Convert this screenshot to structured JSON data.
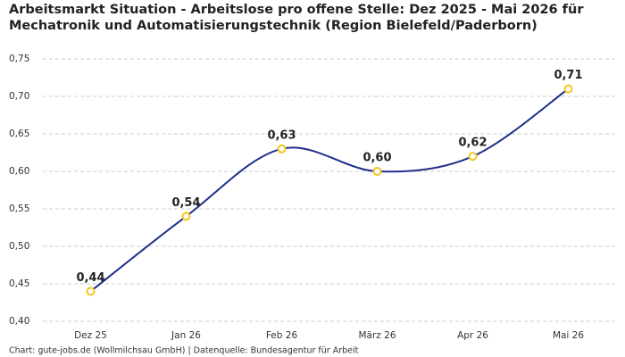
{
  "chart_data": {
    "type": "line",
    "title": [
      "Arbeitsmarkt Situation - Arbeitslose pro offene Stelle: Dez 2025 - Mai 2026 für",
      "Mechatronik und Automatisierungstechnik (Region Bielefeld/Paderborn)"
    ],
    "categories": [
      "Dez 25",
      "Jan 26",
      "Feb 26",
      "März 26",
      "Apr 26",
      "Mai 26"
    ],
    "values": [
      0.44,
      0.54,
      0.63,
      0.6,
      0.62,
      0.71
    ],
    "value_labels": [
      "0,44",
      "0,54",
      "0,63",
      "0,60",
      "0,62",
      "0,71"
    ],
    "color": "#1f2f8a",
    "marker_color": "#f2c51e",
    "ylim": [
      0.4,
      0.75
    ],
    "yticks": [
      {
        "value": 0.4,
        "label": "0,40"
      },
      {
        "value": 0.45,
        "label": "0,45"
      },
      {
        "value": 0.5,
        "label": "0,50"
      },
      {
        "value": 0.55,
        "label": "0,55"
      },
      {
        "value": 0.6,
        "label": "0,60"
      },
      {
        "value": 0.65,
        "label": "0,65"
      },
      {
        "value": 0.7,
        "label": "0,70"
      },
      {
        "value": 0.75,
        "label": "0,75"
      }
    ],
    "grid": true,
    "source": "Chart: gute-jobs.de (Wollmilchsau GmbH) | Datenquelle: Bundesagentur für Arbeit"
  }
}
